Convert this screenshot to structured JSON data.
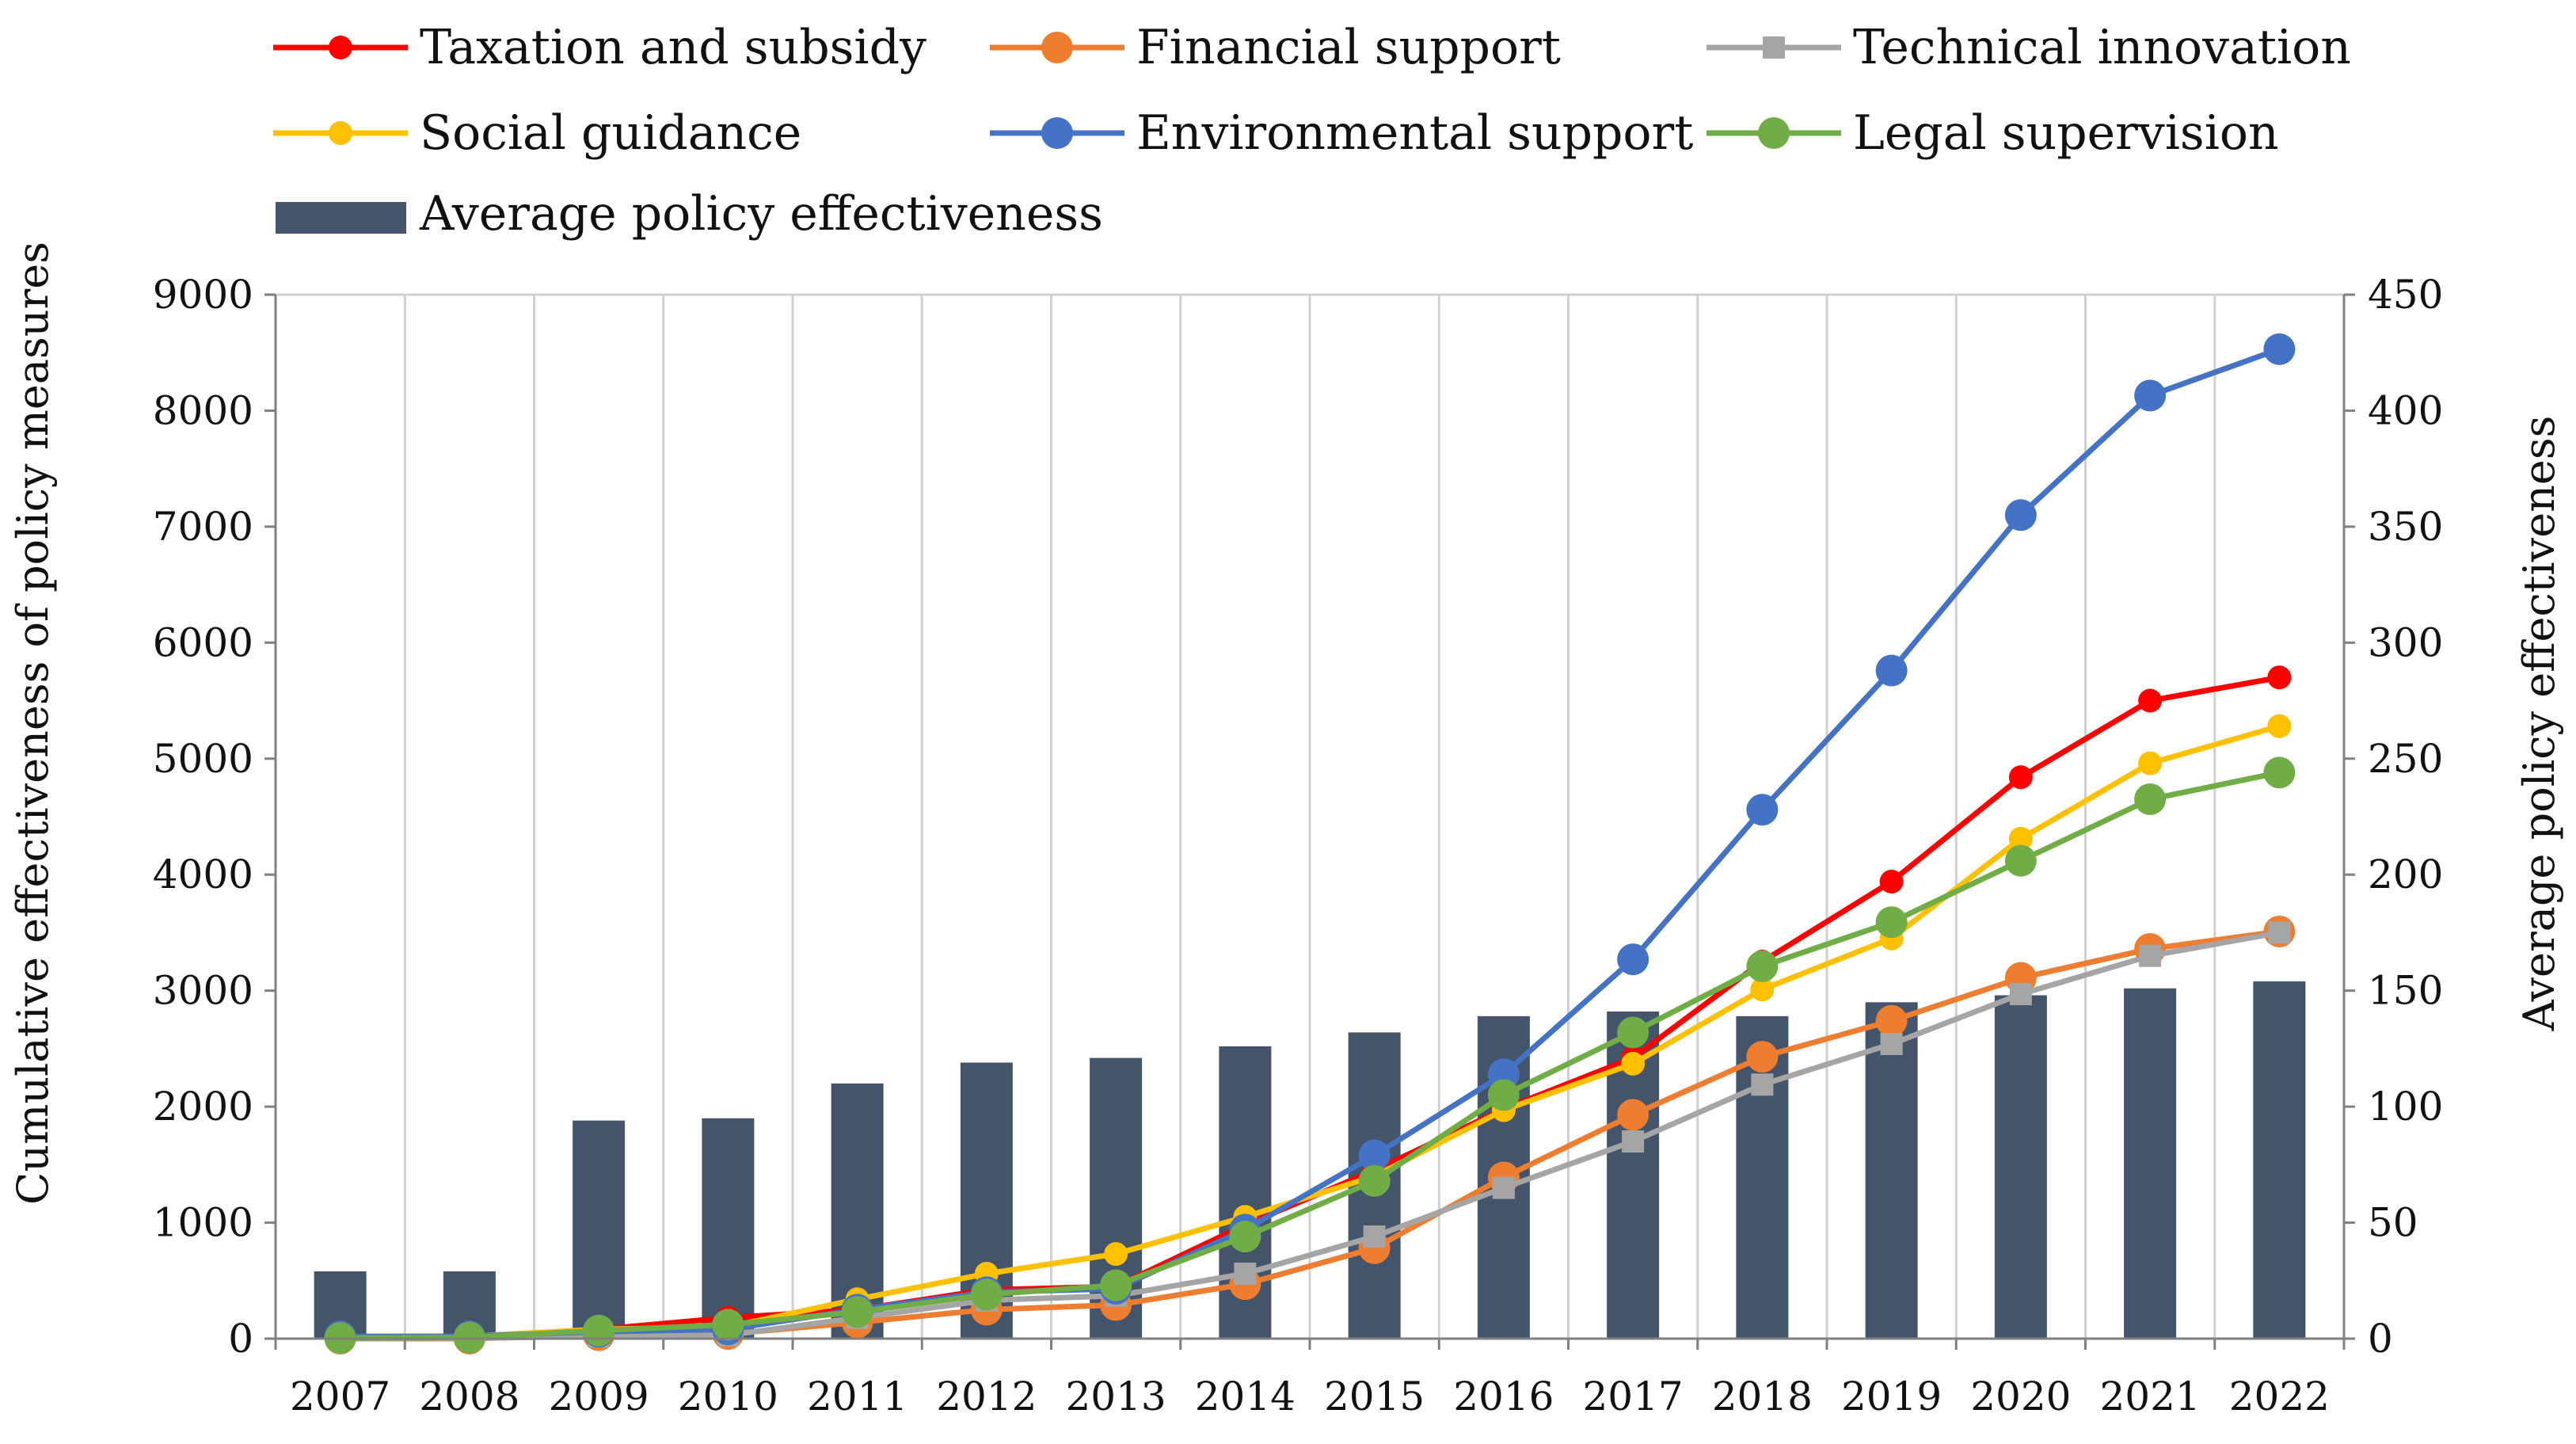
{
  "chart_data": {
    "type": "bar+line",
    "categories": [
      "2007",
      "2008",
      "2009",
      "2010",
      "2011",
      "2012",
      "2013",
      "2014",
      "2015",
      "2016",
      "2017",
      "2018",
      "2019",
      "2020",
      "2021",
      "2022"
    ],
    "ylabel_left": "Cumulative effectiveness of policy measures",
    "ylabel_right": "Average policy effectiveness",
    "ylim_left": [
      0,
      9000
    ],
    "ylim_right": [
      0,
      450
    ],
    "yticks_left": [
      0,
      1000,
      2000,
      3000,
      4000,
      5000,
      6000,
      7000,
      8000,
      9000
    ],
    "yticks_right": [
      0,
      50,
      100,
      150,
      200,
      250,
      300,
      350,
      400,
      450
    ],
    "grid": "vertical",
    "legend_position": "top",
    "bars": {
      "name": "Average policy effectiveness",
      "axis": "right",
      "color": "#44546a",
      "values": [
        29,
        29,
        94,
        95,
        110,
        119,
        121,
        126,
        132,
        139,
        141,
        139,
        145,
        148,
        151,
        154
      ]
    },
    "series": [
      {
        "name": "Taxation and subsidy",
        "color": "#ff0000",
        "marker": "circle-small",
        "values": [
          10,
          15,
          80,
          180,
          250,
          420,
          450,
          980,
          1450,
          1980,
          2420,
          3250,
          3940,
          4840,
          5500,
          5700
        ]
      },
      {
        "name": "Financial support",
        "color": "#ed7d31",
        "marker": "circle",
        "values": [
          0,
          0,
          30,
          40,
          140,
          250,
          290,
          470,
          780,
          1390,
          1930,
          2430,
          2740,
          3110,
          3360,
          3510
        ]
      },
      {
        "name": "Technical innovation",
        "color": "#a5a5a5",
        "marker": "square",
        "values": [
          0,
          5,
          20,
          30,
          180,
          330,
          370,
          560,
          880,
          1300,
          1700,
          2190,
          2540,
          2970,
          3300,
          3500
        ]
      },
      {
        "name": "Social guidance",
        "color": "#ffc000",
        "marker": "circle-small",
        "values": [
          15,
          20,
          80,
          100,
          340,
          560,
          730,
          1050,
          1400,
          1970,
          2370,
          3010,
          3450,
          4310,
          4960,
          5280
        ]
      },
      {
        "name": "Environmental support",
        "color": "#4472c4",
        "marker": "circle",
        "values": [
          20,
          20,
          60,
          80,
          250,
          400,
          430,
          940,
          1580,
          2280,
          3270,
          4560,
          5760,
          7100,
          8130,
          8530
        ]
      },
      {
        "name": "Legal supervision",
        "color": "#70ad47",
        "marker": "circle",
        "values": [
          5,
          10,
          70,
          120,
          230,
          380,
          460,
          880,
          1360,
          2100,
          2640,
          3210,
          3590,
          4120,
          4650,
          4880
        ]
      }
    ]
  }
}
